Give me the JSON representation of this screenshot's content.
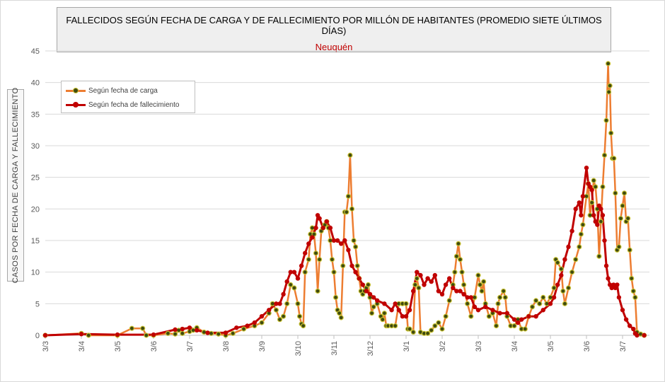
{
  "chart_data": {
    "type": "line",
    "title": "FALLECIDOS SEGÚN FECHA DE CARGA Y DE FALLECIMIENTO POR MILLÓN DE HABITANTES (PROMEDIO SIETE ÚLTIMOS DÍAS)",
    "subtitle": "Neuquén",
    "ylabel": "CASOS POR FECHA DE CARGA  Y FALLECIMIENTO",
    "xlabel": "",
    "ylim": [
      0,
      45
    ],
    "yticks": [
      0,
      5,
      10,
      15,
      20,
      25,
      30,
      35,
      40,
      45
    ],
    "x_tick_labels": [
      "3/3",
      "3/4",
      "3/5",
      "3/6",
      "3/7",
      "3/8",
      "3/9",
      "3/10",
      "3/11",
      "3/12",
      "3/1",
      "3/2",
      "3/3",
      "3/4",
      "3/5",
      "3/6",
      "3/7"
    ],
    "grid": true,
    "legend_position": "top-left",
    "series": [
      {
        "name": "Según fecha de carga",
        "color": "#ed7d31",
        "marker_color": "#3f4a0f",
        "points": [
          [
            0,
            0
          ],
          [
            1,
            0.3
          ],
          [
            1.2,
            0
          ],
          [
            2,
            0
          ],
          [
            2.4,
            1.1
          ],
          [
            2.7,
            1.1
          ],
          [
            2.8,
            0
          ],
          [
            3,
            0
          ],
          [
            3.4,
            0.3
          ],
          [
            3.6,
            0.2
          ],
          [
            3.7,
            0.8
          ],
          [
            3.8,
            0.3
          ],
          [
            4,
            0.6
          ],
          [
            4.1,
            0.8
          ],
          [
            4.2,
            1.2
          ],
          [
            4.4,
            0.5
          ],
          [
            4.6,
            0.3
          ],
          [
            4.8,
            0.2
          ],
          [
            5,
            0
          ],
          [
            5.2,
            0.3
          ],
          [
            5.5,
            1.0
          ],
          [
            5.8,
            1.5
          ],
          [
            6,
            2.0
          ],
          [
            6.2,
            3.5
          ],
          [
            6.3,
            5.0
          ],
          [
            6.4,
            4.0
          ],
          [
            6.5,
            2.5
          ],
          [
            6.6,
            3.0
          ],
          [
            6.7,
            5.0
          ],
          [
            6.8,
            8.0
          ],
          [
            6.9,
            7.5
          ],
          [
            7.0,
            5.0
          ],
          [
            7.05,
            3.0
          ],
          [
            7.1,
            1.8
          ],
          [
            7.15,
            1.5
          ],
          [
            7.2,
            10.0
          ],
          [
            7.3,
            12.0
          ],
          [
            7.35,
            16.0
          ],
          [
            7.4,
            17.0
          ],
          [
            7.45,
            16.0
          ],
          [
            7.5,
            13.0
          ],
          [
            7.55,
            7.0
          ],
          [
            7.6,
            12.0
          ],
          [
            7.65,
            16.5
          ],
          [
            7.7,
            17.0
          ],
          [
            7.75,
            17.5
          ],
          [
            7.8,
            18.0
          ],
          [
            7.85,
            17.0
          ],
          [
            7.9,
            15.0
          ],
          [
            7.95,
            12.0
          ],
          [
            8.0,
            10.0
          ],
          [
            8.05,
            6.0
          ],
          [
            8.1,
            4.0
          ],
          [
            8.15,
            3.5
          ],
          [
            8.2,
            2.8
          ],
          [
            8.25,
            11.0
          ],
          [
            8.3,
            19.5
          ],
          [
            8.35,
            19.5
          ],
          [
            8.4,
            22.0
          ],
          [
            8.45,
            28.5
          ],
          [
            8.5,
            20.0
          ],
          [
            8.55,
            15.0
          ],
          [
            8.6,
            14.0
          ],
          [
            8.65,
            11.0
          ],
          [
            8.7,
            9.0
          ],
          [
            8.75,
            7.0
          ],
          [
            8.8,
            6.5
          ],
          [
            8.85,
            7.0
          ],
          [
            8.9,
            7.5
          ],
          [
            8.95,
            8.0
          ],
          [
            9.0,
            6.0
          ],
          [
            9.05,
            3.5
          ],
          [
            9.1,
            4.5
          ],
          [
            9.2,
            5.0
          ],
          [
            9.3,
            3.0
          ],
          [
            9.35,
            2.5
          ],
          [
            9.4,
            3.5
          ],
          [
            9.45,
            1.5
          ],
          [
            9.5,
            1.5
          ],
          [
            9.6,
            1.5
          ],
          [
            9.7,
            1.5
          ],
          [
            9.8,
            5.0
          ],
          [
            9.9,
            5.0
          ],
          [
            10.0,
            5.0
          ],
          [
            10.05,
            1.0
          ],
          [
            10.1,
            1.0
          ],
          [
            10.2,
            0.5
          ],
          [
            10.25,
            8.0
          ],
          [
            10.3,
            9.0
          ],
          [
            10.35,
            7.5
          ],
          [
            10.4,
            0.5
          ],
          [
            10.5,
            0.3
          ],
          [
            10.6,
            0.3
          ],
          [
            10.7,
            0.8
          ],
          [
            10.8,
            1.5
          ],
          [
            10.9,
            2.0
          ],
          [
            11.0,
            1.0
          ],
          [
            11.1,
            3.0
          ],
          [
            11.2,
            5.5
          ],
          [
            11.3,
            8.0
          ],
          [
            11.35,
            10.0
          ],
          [
            11.4,
            12.5
          ],
          [
            11.45,
            14.5
          ],
          [
            11.5,
            12.0
          ],
          [
            11.55,
            10.0
          ],
          [
            11.6,
            8.0
          ],
          [
            11.7,
            5.0
          ],
          [
            11.8,
            3.0
          ],
          [
            11.9,
            6.0
          ],
          [
            12.0,
            9.5
          ],
          [
            12.05,
            8.0
          ],
          [
            12.1,
            7.0
          ],
          [
            12.15,
            8.5
          ],
          [
            12.2,
            5.0
          ],
          [
            12.3,
            3.0
          ],
          [
            12.4,
            3.5
          ],
          [
            12.5,
            1.5
          ],
          [
            12.55,
            5.0
          ],
          [
            12.6,
            6.0
          ],
          [
            12.7,
            7.0
          ],
          [
            12.75,
            6.0
          ],
          [
            12.8,
            3.0
          ],
          [
            12.9,
            1.5
          ],
          [
            13.0,
            1.5
          ],
          [
            13.1,
            2.5
          ],
          [
            13.2,
            1.0
          ],
          [
            13.3,
            1.0
          ],
          [
            13.4,
            3.0
          ],
          [
            13.5,
            4.5
          ],
          [
            13.6,
            5.5
          ],
          [
            13.7,
            5.0
          ],
          [
            13.8,
            6.0
          ],
          [
            13.9,
            5.0
          ],
          [
            14.0,
            6.0
          ],
          [
            14.1,
            7.5
          ],
          [
            14.15,
            12.0
          ],
          [
            14.2,
            11.5
          ],
          [
            14.3,
            10.5
          ],
          [
            14.35,
            7.0
          ],
          [
            14.4,
            5.0
          ],
          [
            14.5,
            7.5
          ],
          [
            14.6,
            10.0
          ],
          [
            14.7,
            12.0
          ],
          [
            14.8,
            14.0
          ],
          [
            14.85,
            16.0
          ],
          [
            14.9,
            17.5
          ],
          [
            15.0,
            22.0
          ],
          [
            15.05,
            24.0
          ],
          [
            15.1,
            19.0
          ],
          [
            15.15,
            21.0
          ],
          [
            15.2,
            24.5
          ],
          [
            15.25,
            23.5
          ],
          [
            15.3,
            20.0
          ],
          [
            15.35,
            12.5
          ],
          [
            15.4,
            18.0
          ],
          [
            15.45,
            23.5
          ],
          [
            15.5,
            28.5
          ],
          [
            15.55,
            34.0
          ],
          [
            15.6,
            43.0
          ],
          [
            15.62,
            38.5
          ],
          [
            15.65,
            39.5
          ],
          [
            15.68,
            32.0
          ],
          [
            15.72,
            28.0
          ],
          [
            15.76,
            28.0
          ],
          [
            15.8,
            22.5
          ],
          [
            15.85,
            13.5
          ],
          [
            15.9,
            14.0
          ],
          [
            15.95,
            18.5
          ],
          [
            16.0,
            20.5
          ],
          [
            16.05,
            22.5
          ],
          [
            16.1,
            18.0
          ],
          [
            16.15,
            18.5
          ],
          [
            16.2,
            13.5
          ],
          [
            16.25,
            9.0
          ],
          [
            16.3,
            7.0
          ],
          [
            16.35,
            6.0
          ],
          [
            16.4,
            0.5
          ],
          [
            16.5,
            0.2
          ],
          [
            16.6,
            0
          ]
        ]
      },
      {
        "name": "Según fecha de fallecimiento",
        "color": "#c00000",
        "marker_color": "#c00000",
        "points": [
          [
            0,
            0
          ],
          [
            1,
            0.2
          ],
          [
            2,
            0.1
          ],
          [
            3,
            0.1
          ],
          [
            3.6,
            0.9
          ],
          [
            3.8,
            1.0
          ],
          [
            4.0,
            1.2
          ],
          [
            4.2,
            0.8
          ],
          [
            4.5,
            0.4
          ],
          [
            5,
            0.4
          ],
          [
            5.3,
            1.2
          ],
          [
            5.6,
            1.5
          ],
          [
            5.8,
            2.0
          ],
          [
            6.0,
            3.0
          ],
          [
            6.2,
            4.0
          ],
          [
            6.4,
            5.0
          ],
          [
            6.5,
            5.0
          ],
          [
            6.6,
            6.5
          ],
          [
            6.7,
            8.5
          ],
          [
            6.8,
            10.0
          ],
          [
            6.9,
            10.0
          ],
          [
            7.0,
            9.0
          ],
          [
            7.1,
            11.0
          ],
          [
            7.2,
            13.0
          ],
          [
            7.3,
            14.5
          ],
          [
            7.4,
            15.5
          ],
          [
            7.5,
            17.0
          ],
          [
            7.55,
            19.0
          ],
          [
            7.6,
            18.5
          ],
          [
            7.7,
            17.0
          ],
          [
            7.8,
            18.0
          ],
          [
            7.9,
            17.0
          ],
          [
            8.0,
            15.0
          ],
          [
            8.1,
            15.0
          ],
          [
            8.2,
            14.5
          ],
          [
            8.3,
            15.0
          ],
          [
            8.4,
            13.5
          ],
          [
            8.5,
            11.0
          ],
          [
            8.6,
            10.0
          ],
          [
            8.7,
            9.0
          ],
          [
            8.8,
            8.0
          ],
          [
            8.9,
            7.0
          ],
          [
            9.0,
            6.5
          ],
          [
            9.1,
            6.0
          ],
          [
            9.2,
            5.5
          ],
          [
            9.4,
            5.0
          ],
          [
            9.6,
            4.0
          ],
          [
            9.7,
            5.0
          ],
          [
            9.8,
            4.0
          ],
          [
            9.9,
            3.0
          ],
          [
            10.0,
            3.0
          ],
          [
            10.1,
            4.0
          ],
          [
            10.2,
            7.0
          ],
          [
            10.3,
            10.0
          ],
          [
            10.4,
            9.5
          ],
          [
            10.5,
            8.0
          ],
          [
            10.6,
            9.0
          ],
          [
            10.7,
            8.5
          ],
          [
            10.8,
            9.5
          ],
          [
            10.9,
            7.0
          ],
          [
            11.0,
            6.5
          ],
          [
            11.1,
            8.0
          ],
          [
            11.2,
            9.0
          ],
          [
            11.3,
            7.5
          ],
          [
            11.4,
            7.0
          ],
          [
            11.5,
            7.0
          ],
          [
            11.6,
            6.5
          ],
          [
            11.7,
            6.0
          ],
          [
            11.8,
            6.0
          ],
          [
            11.9,
            4.5
          ],
          [
            12.0,
            4.0
          ],
          [
            12.2,
            4.5
          ],
          [
            12.4,
            4.0
          ],
          [
            12.6,
            3.5
          ],
          [
            12.8,
            3.5
          ],
          [
            13.0,
            2.5
          ],
          [
            13.1,
            2.0
          ],
          [
            13.2,
            2.5
          ],
          [
            13.4,
            3.0
          ],
          [
            13.6,
            3.0
          ],
          [
            13.8,
            4.0
          ],
          [
            14.0,
            5.0
          ],
          [
            14.1,
            6.0
          ],
          [
            14.2,
            8.0
          ],
          [
            14.3,
            9.5
          ],
          [
            14.4,
            12.0
          ],
          [
            14.5,
            14.0
          ],
          [
            14.6,
            16.5
          ],
          [
            14.7,
            20.0
          ],
          [
            14.8,
            21.0
          ],
          [
            14.85,
            19.0
          ],
          [
            14.9,
            22.0
          ],
          [
            15.0,
            26.5
          ],
          [
            15.05,
            24.0
          ],
          [
            15.1,
            23.5
          ],
          [
            15.15,
            23.0
          ],
          [
            15.2,
            19.0
          ],
          [
            15.25,
            18.0
          ],
          [
            15.3,
            17.5
          ],
          [
            15.35,
            20.5
          ],
          [
            15.4,
            20.0
          ],
          [
            15.45,
            19.0
          ],
          [
            15.5,
            15.0
          ],
          [
            15.55,
            11.0
          ],
          [
            15.6,
            9.0
          ],
          [
            15.65,
            8.0
          ],
          [
            15.7,
            7.5
          ],
          [
            15.75,
            8.0
          ],
          [
            15.8,
            7.5
          ],
          [
            15.85,
            8.0
          ],
          [
            15.9,
            6.0
          ],
          [
            16.0,
            4.0
          ],
          [
            16.1,
            2.5
          ],
          [
            16.2,
            1.5
          ],
          [
            16.3,
            1.0
          ],
          [
            16.35,
            0.3
          ],
          [
            16.4,
            0
          ],
          [
            16.6,
            0
          ]
        ]
      }
    ]
  }
}
